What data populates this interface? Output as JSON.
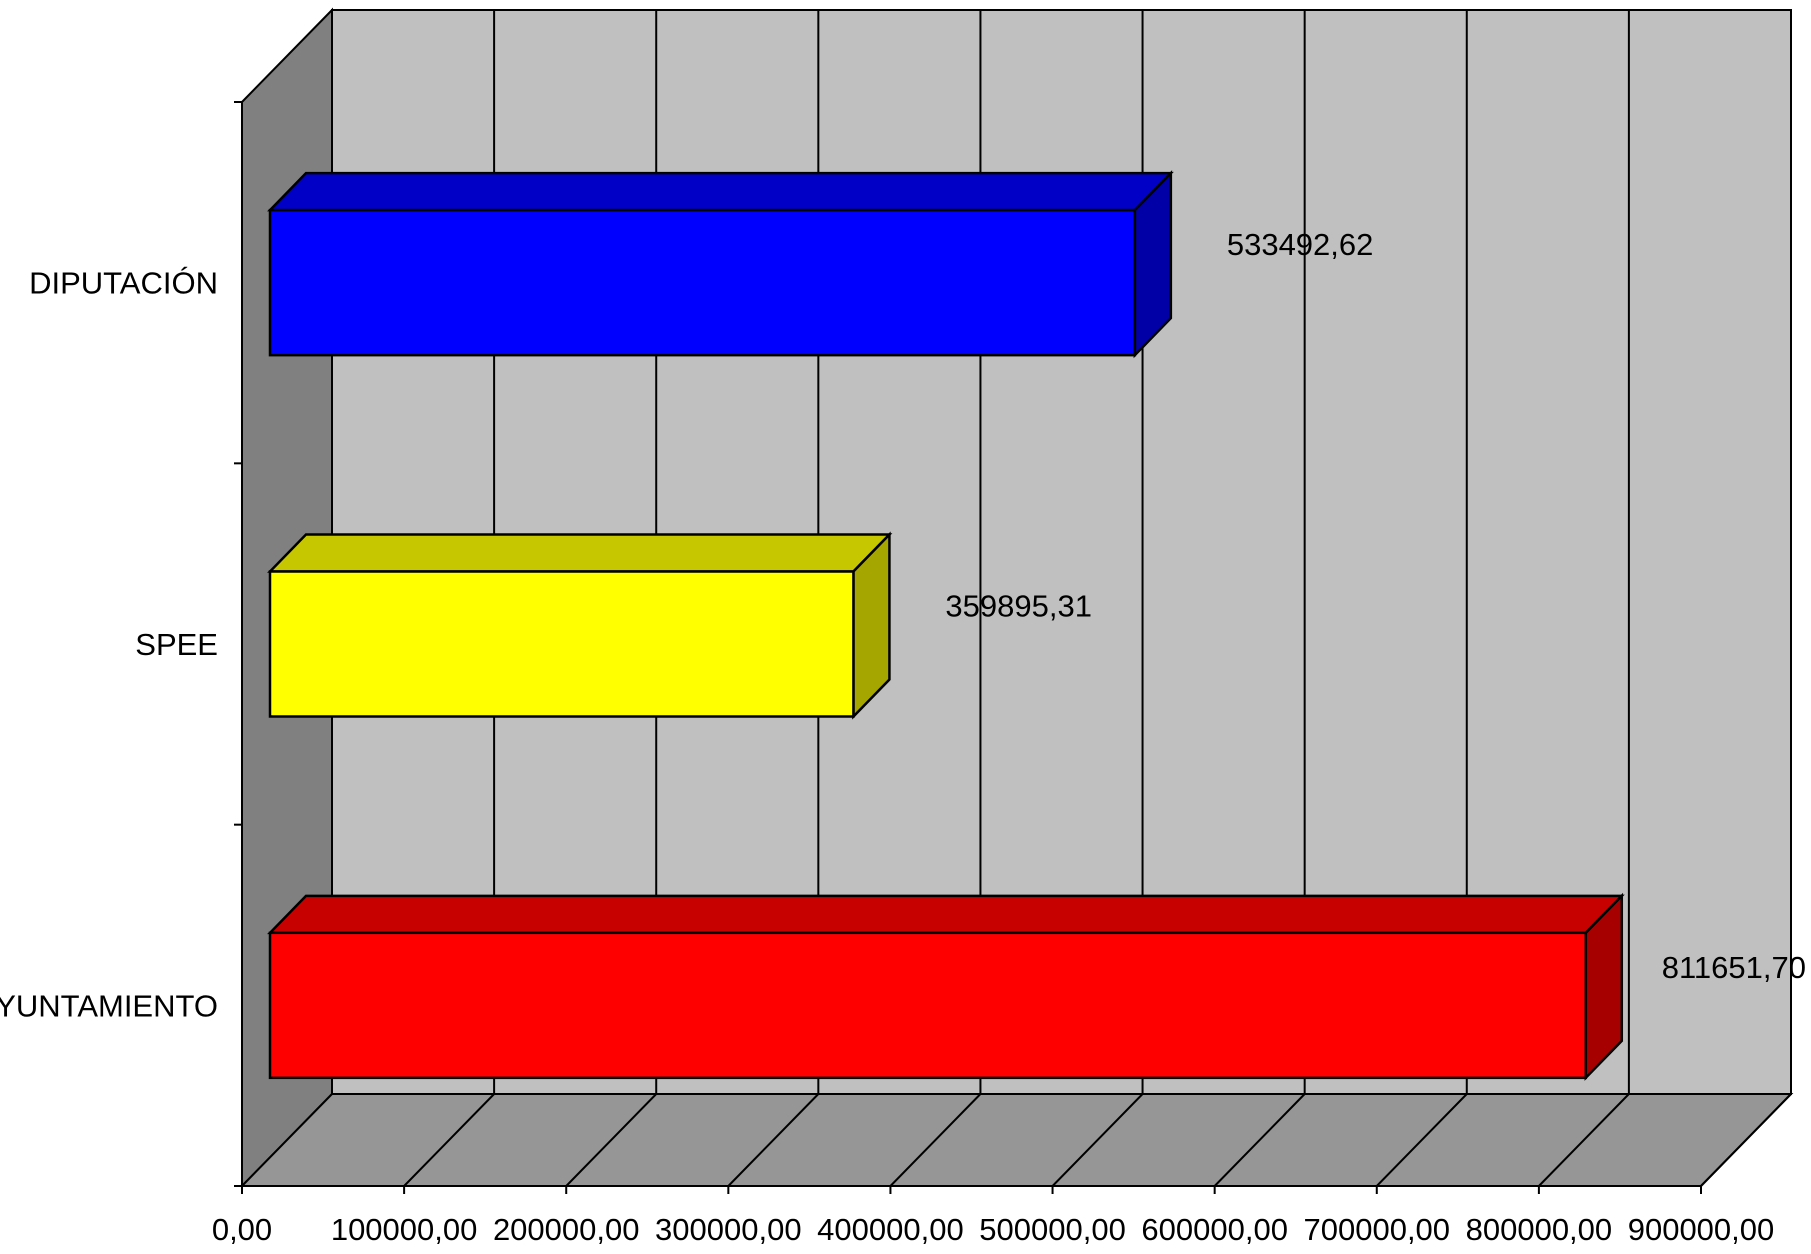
{
  "chart_data": {
    "type": "bar",
    "orientation": "horizontal",
    "style": "3d",
    "title": "",
    "xlabel": "",
    "ylabel": "",
    "categories": [
      "AYUNTAMIENTO",
      "SPEE",
      "DIPUTACIÓN"
    ],
    "values": [
      811651.7,
      359895.31,
      533492.62
    ],
    "data_labels": [
      "811651,70",
      "359895,31",
      "533492,62"
    ],
    "bar_colors": [
      "#ff0000",
      "#ffff00",
      "#0000ff"
    ],
    "xlim": [
      0,
      900000
    ],
    "x_ticks": [
      0,
      100000,
      200000,
      300000,
      400000,
      500000,
      600000,
      700000,
      800000,
      900000
    ],
    "x_tick_labels": [
      "0,00",
      "100000,00",
      "200000,00",
      "300000,00",
      "400000,00",
      "500000,00",
      "600000,00",
      "700000,00",
      "800000,00",
      "900000,00"
    ],
    "grid": true,
    "legend": "none",
    "wall_color": "#c0c0c0",
    "side_wall_color": "#808080",
    "floor_color": "#969696"
  }
}
